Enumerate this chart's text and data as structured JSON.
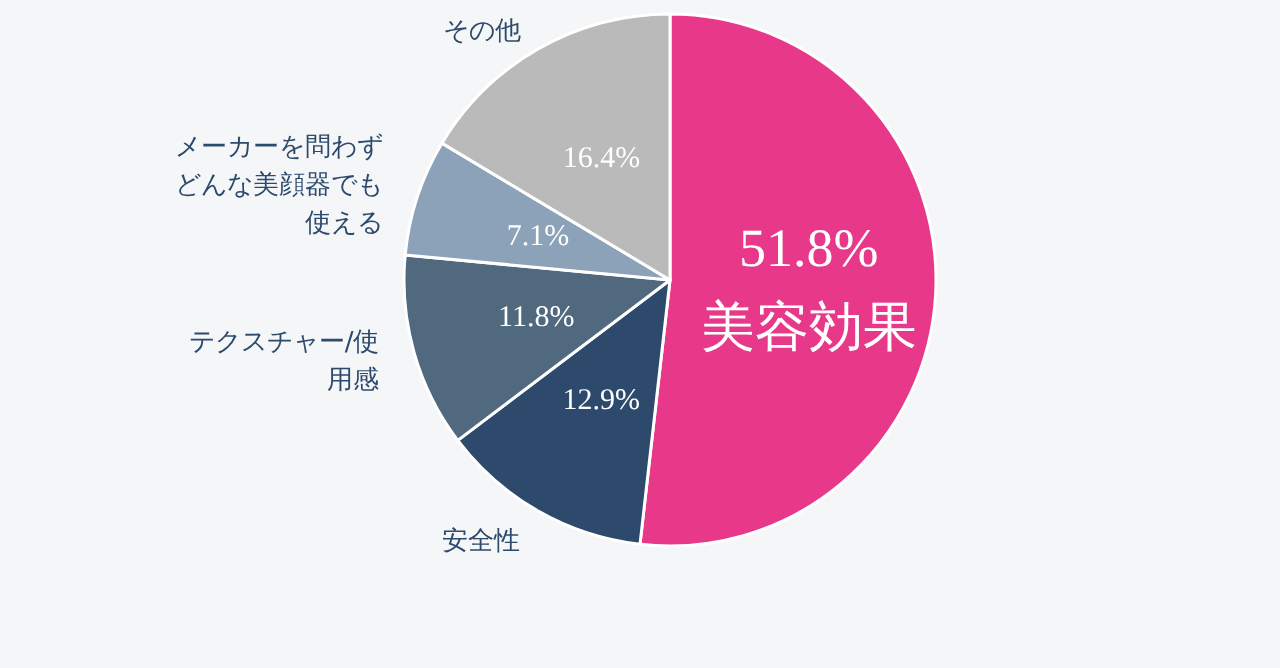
{
  "chart_data": {
    "type": "pie",
    "categories": [
      "美容効果",
      "安全性",
      "テクスチャー/使用感",
      "メーカーを問わずどんな美顔器でも使える",
      "その他"
    ],
    "values": [
      51.8,
      12.9,
      11.8,
      7.1,
      16.4
    ],
    "value_labels": [
      "51.8%",
      "12.9%",
      "11.8%",
      "7.1%",
      "16.4%"
    ],
    "colors": [
      "#e8388a",
      "#2d4a6c",
      "#51697e",
      "#8ca2b9",
      "#bababa"
    ],
    "legend": false
  }
}
